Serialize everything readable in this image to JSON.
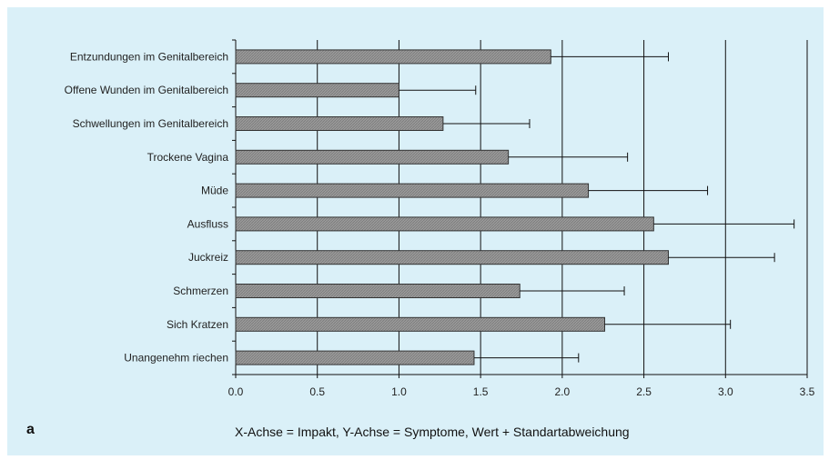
{
  "panel_label": "a",
  "caption": "X-Achse = Impakt, Y-Achse = Symptome, Wert + Standartabweichung",
  "colors": {
    "background": "#daf0f8",
    "bar_fill": "#9a9a9a",
    "bar_stroke": "#333333",
    "grid": "#111111"
  },
  "chart_data": {
    "type": "bar",
    "orientation": "horizontal",
    "categories": [
      "Entzundungen im Genitalbereich",
      "Offene Wunden im Genitalbereich",
      "Schwellungen im Genitalbereich",
      "Trockene Vagina",
      "Müde",
      "Ausfluss",
      "Juckreiz",
      "Schmerzen",
      "Sich Kratzen",
      "Unangenehm riechen"
    ],
    "values": [
      1.93,
      1.0,
      1.27,
      1.67,
      2.16,
      2.56,
      2.65,
      1.74,
      2.26,
      1.46
    ],
    "error": [
      0.72,
      0.47,
      0.53,
      0.73,
      0.73,
      0.86,
      0.65,
      0.64,
      0.77,
      0.64
    ],
    "xlim": [
      0,
      3.5
    ],
    "xticks": [
      "0.0",
      "0.5",
      "1.0",
      "1.5",
      "2.0",
      "2.5",
      "3.0",
      "3.5"
    ],
    "grid": true,
    "xlabel": "",
    "ylabel": ""
  }
}
